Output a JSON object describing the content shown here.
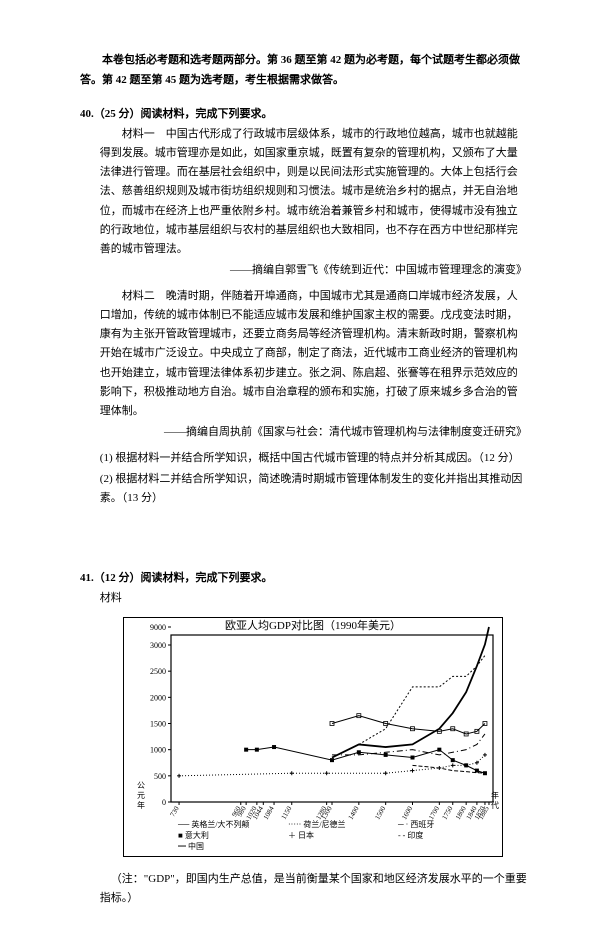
{
  "intro": "本卷包括必考题和选考题两部分。第 36 题至第 42 题为必考题，每个试题考生都必须做答。第 42 题至第 45 题为选考题，考生根据需求做答。",
  "q40": {
    "num": "40.（25 分）阅读材料，完成下列要求。",
    "m1": "材料一　中国古代形成了行政城市层级体系，城市的行政地位越高，城市也就越能得到发展。城市管理亦是如此，如国家重京城，既置有复杂的管理机构，又颁布了大量法律进行管理。而在基层社会组织中，则是以民间法形式实施管理的。大体上包括行会法、慈善组织规则及城市街坊组织规则和习惯法。城市是统治乡村的据点，并无自治地位，而城市在经济上也严重依附乡村。城市统治着兼管乡村和城市，使得城市没有独立的行政地位，城市基层组织与农村的基层组织也大致相同，也不存在西方中世纪那样完善的城市管理法。",
    "src1": "——摘编自郭雪飞《传统到近代：中国城市管理理念的演变》",
    "m2": "材料二　晚清时期，伴随着开埠通商，中国城市尤其是通商口岸城市经济发展，人口增加，传统的城市体制已不能适应城市发展和维护国家主权的需要。戊戌变法时期，康有为主张开管政管理城市，还要立商务局等经济管理机构。清末新政时期，警察机构开始在城市广泛设立。中央成立了商部，制定了商法，近代城市工商业经济的管理机构也开始建立，城市管理法律体系初步建立。张之洞、陈启超、张謇等在租界示范效应的影响下，积极推动地方自治。城市自治章程的颁布和实施，打破了原来城乡多合治的管理体制。",
    "src2": "——摘编自周执前《国家与社会：清代城市管理机构与法律制度变迁研究》",
    "sub1": "(1) 根据材料一并结合所学知识，概括中国古代城市管理的特点并分析其成因。（12 分）",
    "sub2": "(2) 根据材料二并结合所学知识，简述晚清时期城市管理体制发生的变化并指出其推动因素。（13 分）"
  },
  "q41": {
    "num": "41.（12 分）阅读材料，完成下列要求。",
    "mat": "材料"
  },
  "chart": {
    "title": "欧亚人均GDP对比图（1990年美元）",
    "ylim": [
      0,
      9000
    ],
    "yticks": [
      0,
      500,
      1000,
      1500,
      2000,
      2500,
      3000,
      9000
    ],
    "yticklabels": [
      "0",
      "500",
      "1000",
      "1500",
      "2000",
      "2500",
      "3000",
      "9000"
    ],
    "xticks": [
      730,
      960,
      980,
      1020,
      1044,
      1084,
      1150,
      1280,
      1300,
      1400,
      1500,
      1600,
      1700,
      1750,
      1800,
      1840,
      1870,
      1885
    ],
    "xlabel_left": "公元年",
    "xlabel_right": "年代",
    "bg": "#ffffff",
    "grid_color": "#000000",
    "series": [
      {
        "name": "英格兰/大不列颠",
        "marker": "line-bold",
        "color": "#000",
        "dash": "",
        "data": [
          [
            1300,
            850
          ],
          [
            1400,
            1100
          ],
          [
            1500,
            1050
          ],
          [
            1600,
            1100
          ],
          [
            1700,
            1400
          ],
          [
            1750,
            1700
          ],
          [
            1800,
            2100
          ],
          [
            1840,
            2600
          ],
          [
            1870,
            3200
          ],
          [
            1885,
            9000
          ]
        ]
      },
      {
        "name": "荷兰/尼德兰",
        "marker": "dot",
        "color": "#000",
        "dash": "2,2",
        "data": [
          [
            1400,
            1100
          ],
          [
            1500,
            1400
          ],
          [
            1600,
            2200
          ],
          [
            1700,
            2200
          ],
          [
            1750,
            2400
          ],
          [
            1800,
            2400
          ],
          [
            1840,
            2600
          ],
          [
            1870,
            2800
          ]
        ]
      },
      {
        "name": "西班牙",
        "marker": "dashdot",
        "color": "#000",
        "dash": "6,3,1,3",
        "data": [
          [
            1300,
            900
          ],
          [
            1400,
            900
          ],
          [
            1500,
            950
          ],
          [
            1600,
            1000
          ],
          [
            1700,
            900
          ],
          [
            1750,
            950
          ],
          [
            1800,
            1000
          ],
          [
            1840,
            1100
          ],
          [
            1870,
            1300
          ]
        ]
      },
      {
        "name": "意大利",
        "marker": "square",
        "color": "#000",
        "dash": "",
        "data": [
          [
            1300,
            1500
          ],
          [
            1400,
            1650
          ],
          [
            1500,
            1500
          ],
          [
            1600,
            1400
          ],
          [
            1700,
            1350
          ],
          [
            1750,
            1400
          ],
          [
            1800,
            1300
          ],
          [
            1840,
            1350
          ],
          [
            1870,
            1500
          ]
        ]
      },
      {
        "name": "日本",
        "marker": "plus",
        "color": "#000",
        "dash": "1,2",
        "data": [
          [
            730,
            500
          ],
          [
            1150,
            550
          ],
          [
            1280,
            550
          ],
          [
            1500,
            550
          ],
          [
            1600,
            600
          ],
          [
            1700,
            650
          ],
          [
            1750,
            700
          ],
          [
            1800,
            700
          ],
          [
            1840,
            750
          ],
          [
            1870,
            900
          ]
        ]
      },
      {
        "name": "印度",
        "marker": "short-dash",
        "color": "#000",
        "dash": "4,2",
        "data": [
          [
            1600,
            700
          ],
          [
            1700,
            650
          ],
          [
            1750,
            600
          ],
          [
            1800,
            580
          ],
          [
            1840,
            560
          ],
          [
            1870,
            550
          ]
        ]
      },
      {
        "name": "中国",
        "marker": "filled-square",
        "color": "#000",
        "dash": "",
        "data": [
          [
            980,
            1000
          ],
          [
            1020,
            1000
          ],
          [
            1084,
            1050
          ],
          [
            1300,
            800
          ],
          [
            1400,
            950
          ],
          [
            1500,
            900
          ],
          [
            1600,
            850
          ],
          [
            1700,
            1000
          ],
          [
            1750,
            800
          ],
          [
            1800,
            700
          ],
          [
            1840,
            600
          ],
          [
            1870,
            550
          ]
        ]
      }
    ],
    "legend": [
      {
        "name": "英格兰/大不列颠",
        "symbol": "──"
      },
      {
        "name": "荷兰/尼德兰",
        "symbol": "·····"
      },
      {
        "name": "西班牙",
        "symbol": "─ ·"
      },
      {
        "name": "意大利",
        "symbol": "■"
      },
      {
        "name": "日本",
        "symbol": "＋"
      },
      {
        "name": "印度",
        "symbol": "- -"
      },
      {
        "name": "中国",
        "symbol": "━"
      }
    ]
  },
  "note": "（注：\"GDP\"，即国内生产总值，是当前衡量某个国家和地区经济发展水平的一个重要指标。）"
}
